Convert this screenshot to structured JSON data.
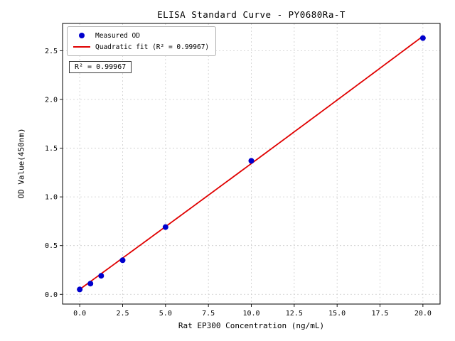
{
  "chart_data": {
    "type": "scatter",
    "title": "ELISA Standard Curve - PY0680Ra-T",
    "xlabel": "Rat EP300 Concentration (ng/mL)",
    "ylabel": "OD Value(450nm)",
    "xlim": [
      -1,
      21
    ],
    "ylim": [
      -0.1,
      2.78
    ],
    "xticks": [
      0.0,
      2.5,
      5.0,
      7.5,
      10.0,
      12.5,
      15.0,
      17.5,
      20.0
    ],
    "yticks": [
      0.0,
      0.5,
      1.0,
      1.5,
      2.0,
      2.5
    ],
    "grid": true,
    "annotation": "R² = 0.99967",
    "legend": {
      "position": "upper-left",
      "entries": [
        {
          "label": "Measured OD",
          "marker": "dot",
          "color": "#0000cd"
        },
        {
          "label": "Quadratic fit (R² = 0.99967)",
          "marker": "line",
          "color": "#e00000"
        }
      ]
    },
    "series": [
      {
        "name": "Measured OD",
        "type": "scatter",
        "color": "#0000cd",
        "x": [
          0,
          0.625,
          1.25,
          2.5,
          5,
          10,
          20
        ],
        "y": [
          0.05,
          0.11,
          0.19,
          0.35,
          0.69,
          1.37,
          2.63
        ]
      },
      {
        "name": "Quadratic fit",
        "type": "line",
        "color": "#e00000",
        "r_squared": 0.99967,
        "coefficients": {
          "c0": 0.051,
          "c1": 0.1283,
          "c2": 8e-05
        },
        "x_range": [
          0,
          20
        ]
      }
    ]
  }
}
